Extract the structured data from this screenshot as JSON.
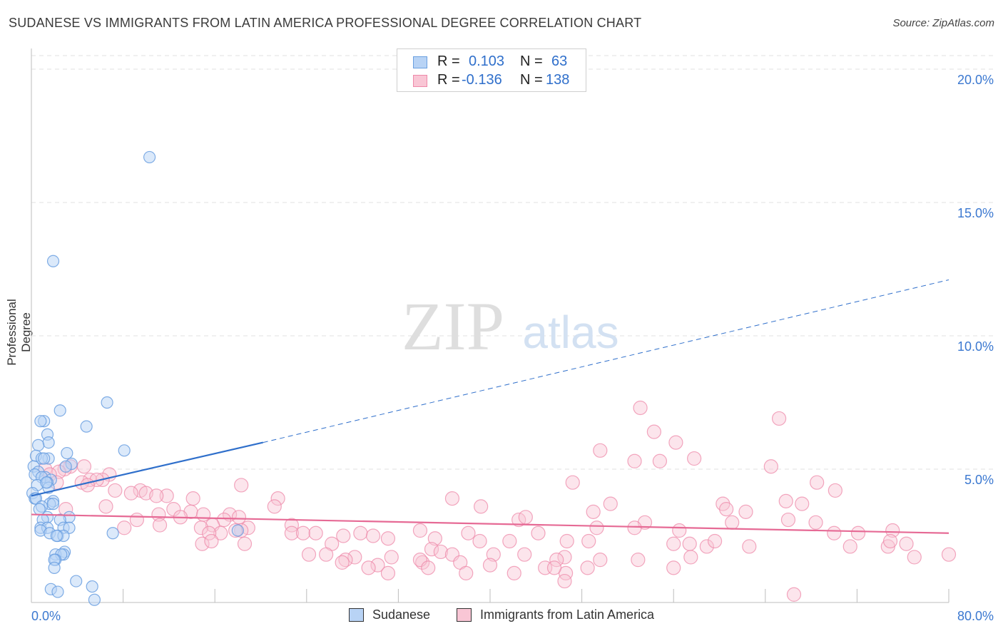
{
  "title": "SUDANESE VS IMMIGRANTS FROM LATIN AMERICA PROFESSIONAL DEGREE CORRELATION CHART",
  "source": "Source: ZipAtlas.com",
  "watermark": {
    "zip": "ZIP",
    "atlas": "atlas"
  },
  "stats": [
    {
      "r_label": "R =",
      "r_value": "0.103",
      "n_label": "N =",
      "n_value": "63",
      "color": "#6a9fe0"
    },
    {
      "r_label": "R =",
      "r_value": "-0.136",
      "n_label": "N =",
      "n_value": "138",
      "color": "#ee89a9"
    }
  ],
  "legend": {
    "sudanese": "Sudanese",
    "latin": "Immigrants from Latin America"
  },
  "colors": {
    "blue_fill": "#b8d3f5",
    "blue_stroke": "#6a9fe0",
    "blue_line": "#2f6fcb",
    "pink_fill": "#f9c6d5",
    "pink_stroke": "#ee89a9",
    "pink_line": "#e66a95",
    "tick": "#3b78d0"
  },
  "chart_data": {
    "type": "scatter",
    "ylabel": "Professional Degree",
    "xlabel": "",
    "xlim": [
      0,
      80
    ],
    "ylim": [
      0,
      20.5
    ],
    "x_tick_labels": [
      "0.0%",
      "80.0%"
    ],
    "y_ticks": [
      5,
      10,
      15,
      20
    ],
    "y_tick_labels": [
      "5.0%",
      "10.0%",
      "15.0%",
      "20.0%"
    ],
    "grid": true,
    "series": [
      {
        "name": "Sudanese",
        "trend": {
          "x0": 0,
          "y0": 4.0,
          "x1": 20.2,
          "y1": 6.0,
          "dashed_to_x": 80,
          "dashed_to_y": 12.1
        },
        "points": [
          [
            10.3,
            16.7
          ],
          [
            1.9,
            12.8
          ],
          [
            6.6,
            7.5
          ],
          [
            2.5,
            7.2
          ],
          [
            1.1,
            6.8
          ],
          [
            0.8,
            6.8
          ],
          [
            4.8,
            6.6
          ],
          [
            1.4,
            6.3
          ],
          [
            1.5,
            6.0
          ],
          [
            0.6,
            5.9
          ],
          [
            8.1,
            5.7
          ],
          [
            3.1,
            5.6
          ],
          [
            0.4,
            5.5
          ],
          [
            1.5,
            5.4
          ],
          [
            0.9,
            5.4
          ],
          [
            1.1,
            5.4
          ],
          [
            3.5,
            5.2
          ],
          [
            0.2,
            5.1
          ],
          [
            3.0,
            5.1
          ],
          [
            0.6,
            4.9
          ],
          [
            0.3,
            4.8
          ],
          [
            1.2,
            4.7
          ],
          [
            0.9,
            4.7
          ],
          [
            1.7,
            4.6
          ],
          [
            1.4,
            4.5
          ],
          [
            0.5,
            4.4
          ],
          [
            1.5,
            4.3
          ],
          [
            0.1,
            4.1
          ],
          [
            0.3,
            3.9
          ],
          [
            0.4,
            3.9
          ],
          [
            1.9,
            3.8
          ],
          [
            1.6,
            3.7
          ],
          [
            1.9,
            3.7
          ],
          [
            0.9,
            3.6
          ],
          [
            0.7,
            3.5
          ],
          [
            1.4,
            3.2
          ],
          [
            3.3,
            3.2
          ],
          [
            2.5,
            3.1
          ],
          [
            1.0,
            3.1
          ],
          [
            0.8,
            2.8
          ],
          [
            1.4,
            2.8
          ],
          [
            2.8,
            2.8
          ],
          [
            3.3,
            2.8
          ],
          [
            0.8,
            2.7
          ],
          [
            18.0,
            2.7
          ],
          [
            1.6,
            2.6
          ],
          [
            2.3,
            2.5
          ],
          [
            7.1,
            2.6
          ],
          [
            2.8,
            2.5
          ],
          [
            2.9,
            1.9
          ],
          [
            2.1,
            1.8
          ],
          [
            2.8,
            1.8
          ],
          [
            2.6,
            1.8
          ],
          [
            2.1,
            1.6
          ],
          [
            2.0,
            1.6
          ],
          [
            2.0,
            1.3
          ],
          [
            3.9,
            0.8
          ],
          [
            1.7,
            0.5
          ],
          [
            5.3,
            0.6
          ],
          [
            2.3,
            0.4
          ],
          [
            5.5,
            0.1
          ],
          [
            2.2,
            2.5
          ],
          [
            1.3,
            4.5
          ]
        ]
      },
      {
        "name": "Immigrants from Latin America",
        "trend": {
          "x0": 0,
          "y0": 3.3,
          "x1": 80,
          "y1": 2.6
        },
        "points": [
          [
            53.1,
            7.3
          ],
          [
            65.2,
            6.9
          ],
          [
            54.3,
            6.4
          ],
          [
            56.2,
            6.0
          ],
          [
            49.6,
            5.7
          ],
          [
            57.8,
            5.4
          ],
          [
            52.6,
            5.3
          ],
          [
            54.8,
            5.3
          ],
          [
            64.5,
            5.1
          ],
          [
            4.6,
            5.1
          ],
          [
            3.4,
            5.1
          ],
          [
            1.2,
            5.0
          ],
          [
            2.9,
            5.0
          ],
          [
            2.4,
            4.9
          ],
          [
            6.8,
            4.8
          ],
          [
            1.6,
            4.8
          ],
          [
            6.2,
            4.6
          ],
          [
            5.1,
            4.6
          ],
          [
            47.2,
            4.5
          ],
          [
            5.7,
            4.6
          ],
          [
            4.4,
            4.5
          ],
          [
            2.2,
            4.5
          ],
          [
            18.3,
            4.4
          ],
          [
            68.5,
            4.5
          ],
          [
            4.9,
            4.4
          ],
          [
            70.1,
            4.2
          ],
          [
            7.3,
            4.2
          ],
          [
            9.5,
            4.2
          ],
          [
            10.0,
            4.1
          ],
          [
            8.7,
            4.1
          ],
          [
            11.8,
            4.0
          ],
          [
            10.9,
            4.0
          ],
          [
            36.7,
            3.9
          ],
          [
            21.5,
            3.9
          ],
          [
            14.1,
            3.9
          ],
          [
            65.8,
            3.8
          ],
          [
            67.2,
            3.7
          ],
          [
            60.3,
            3.7
          ],
          [
            39.2,
            3.6
          ],
          [
            50.5,
            3.7
          ],
          [
            21.2,
            3.6
          ],
          [
            6.5,
            3.6
          ],
          [
            60.6,
            3.5
          ],
          [
            3.0,
            3.5
          ],
          [
            12.4,
            3.5
          ],
          [
            13.9,
            3.4
          ],
          [
            15.0,
            3.3
          ],
          [
            17.3,
            3.3
          ],
          [
            62.3,
            3.4
          ],
          [
            49.0,
            3.4
          ],
          [
            66.0,
            3.1
          ],
          [
            9.2,
            3.1
          ],
          [
            42.5,
            3.1
          ],
          [
            18.1,
            3.2
          ],
          [
            43.1,
            3.2
          ],
          [
            11.1,
            3.3
          ],
          [
            13.0,
            3.2
          ],
          [
            16.8,
            3.1
          ],
          [
            61.1,
            3.0
          ],
          [
            53.5,
            3.0
          ],
          [
            68.4,
            3.0
          ],
          [
            15.8,
            2.9
          ],
          [
            11.2,
            2.9
          ],
          [
            22.7,
            2.9
          ],
          [
            14.8,
            2.8
          ],
          [
            49.3,
            2.8
          ],
          [
            8.1,
            2.8
          ],
          [
            52.6,
            2.8
          ],
          [
            18.9,
            2.8
          ],
          [
            56.5,
            2.7
          ],
          [
            18.3,
            2.7
          ],
          [
            44.2,
            2.6
          ],
          [
            70.0,
            2.6
          ],
          [
            72.1,
            2.6
          ],
          [
            33.9,
            2.7
          ],
          [
            75.1,
            2.7
          ],
          [
            17.8,
            2.7
          ],
          [
            16.5,
            2.6
          ],
          [
            15.5,
            2.6
          ],
          [
            22.7,
            2.6
          ],
          [
            23.7,
            2.6
          ],
          [
            28.7,
            2.6
          ],
          [
            24.8,
            2.6
          ],
          [
            27.2,
            2.5
          ],
          [
            38.1,
            2.6
          ],
          [
            31.1,
            2.4
          ],
          [
            29.8,
            2.5
          ],
          [
            35.2,
            2.4
          ],
          [
            48.6,
            2.3
          ],
          [
            46.7,
            2.3
          ],
          [
            56.0,
            2.2
          ],
          [
            39.1,
            2.3
          ],
          [
            41.7,
            2.3
          ],
          [
            26.2,
            2.2
          ],
          [
            18.6,
            2.2
          ],
          [
            14.9,
            2.2
          ],
          [
            76.3,
            2.2
          ],
          [
            74.7,
            2.1
          ],
          [
            58.9,
            2.1
          ],
          [
            74.9,
            2.3
          ],
          [
            57.4,
            2.2
          ],
          [
            59.6,
            2.3
          ],
          [
            62.6,
            2.1
          ],
          [
            71.4,
            2.1
          ],
          [
            15.7,
            2.3
          ],
          [
            34.9,
            2.0
          ],
          [
            43.0,
            1.8
          ],
          [
            35.7,
            1.9
          ],
          [
            25.7,
            1.8
          ],
          [
            46.5,
            1.7
          ],
          [
            40.3,
            1.8
          ],
          [
            24.2,
            1.8
          ],
          [
            36.7,
            1.8
          ],
          [
            28.2,
            1.7
          ],
          [
            27.4,
            1.6
          ],
          [
            45.8,
            1.6
          ],
          [
            31.4,
            1.7
          ],
          [
            34.1,
            1.5
          ],
          [
            52.9,
            1.6
          ],
          [
            57.5,
            1.7
          ],
          [
            37.4,
            1.5
          ],
          [
            30.2,
            1.4
          ],
          [
            49.6,
            1.6
          ],
          [
            33.9,
            1.6
          ],
          [
            44.8,
            1.3
          ],
          [
            42.1,
            1.1
          ],
          [
            40.0,
            1.4
          ],
          [
            34.6,
            1.3
          ],
          [
            56.0,
            1.3
          ],
          [
            46.6,
            1.1
          ],
          [
            45.6,
            1.3
          ],
          [
            48.5,
            1.3
          ],
          [
            37.9,
            1.1
          ],
          [
            77.0,
            1.7
          ],
          [
            80.0,
            1.8
          ],
          [
            46.5,
            0.8
          ],
          [
            66.5,
            0.3
          ],
          [
            31.1,
            1.1
          ],
          [
            27.1,
            1.5
          ],
          [
            29.4,
            1.3
          ]
        ]
      }
    ]
  }
}
